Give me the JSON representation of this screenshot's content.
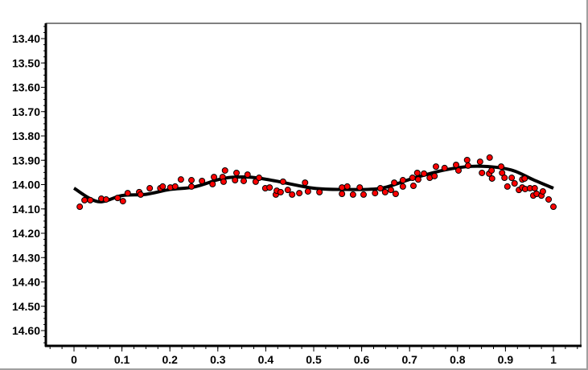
{
  "chart_data": {
    "type": "scatter",
    "title": "",
    "xlabel": "",
    "ylabel": "",
    "xlim": [
      -0.06,
      1.06
    ],
    "ylim": [
      14.665,
      13.335
    ],
    "y_inverted": true,
    "grid": false,
    "x_ticks": [
      "0",
      "0.1",
      "0.2",
      "0.3",
      "0.4",
      "0.5",
      "0.6",
      "0.7",
      "0.8",
      "0.9",
      "1"
    ],
    "x_tick_values": [
      0,
      0.1,
      0.2,
      0.3,
      0.4,
      0.5,
      0.6,
      0.7,
      0.8,
      0.9,
      1
    ],
    "y_ticks": [
      "13.40",
      "13.50",
      "13.60",
      "13.70",
      "13.80",
      "13.90",
      "14.00",
      "14.10",
      "14.20",
      "14.30",
      "14.40",
      "14.50",
      "14.60"
    ],
    "y_tick_values": [
      13.4,
      13.5,
      13.6,
      13.7,
      13.8,
      13.9,
      14.0,
      14.1,
      14.2,
      14.3,
      14.4,
      14.5,
      14.6
    ],
    "colors": {
      "points": "#ff0000",
      "point_outline": "#000000",
      "fit_line": "#000000"
    },
    "points": {
      "x": [
        0.012,
        0.022,
        0.034,
        0.057,
        0.067,
        0.091,
        0.102,
        0.112,
        0.136,
        0.139,
        0.158,
        0.18,
        0.185,
        0.201,
        0.211,
        0.223,
        0.245,
        0.245,
        0.267,
        0.289,
        0.292,
        0.31,
        0.312,
        0.315,
        0.336,
        0.339,
        0.354,
        0.362,
        0.379,
        0.386,
        0.399,
        0.408,
        0.421,
        0.423,
        0.431,
        0.436,
        0.446,
        0.455,
        0.47,
        0.482,
        0.488,
        0.512,
        0.559,
        0.559,
        0.57,
        0.582,
        0.596,
        0.604,
        0.628,
        0.639,
        0.649,
        0.661,
        0.668,
        0.671,
        0.686,
        0.686,
        0.706,
        0.708,
        0.716,
        0.718,
        0.73,
        0.742,
        0.752,
        0.755,
        0.773,
        0.797,
        0.802,
        0.82,
        0.822,
        0.847,
        0.851,
        0.866,
        0.867,
        0.871,
        0.872,
        0.891,
        0.893,
        0.898,
        0.904,
        0.913,
        0.919,
        0.928,
        0.935,
        0.935,
        0.94,
        0.941,
        0.951,
        0.958,
        0.961,
        0.965,
        0.975,
        0.978,
        0.99,
        1.0
      ],
      "y": [
        14.091,
        14.064,
        14.064,
        14.058,
        14.061,
        14.055,
        14.068,
        14.035,
        14.031,
        14.041,
        14.015,
        14.015,
        14.008,
        14.012,
        14.008,
        13.979,
        13.982,
        14.008,
        13.985,
        13.998,
        13.969,
        13.969,
        13.988,
        13.942,
        13.982,
        13.952,
        13.985,
        13.959,
        13.988,
        13.972,
        14.015,
        14.012,
        14.041,
        14.025,
        14.031,
        13.988,
        14.022,
        14.041,
        14.035,
        13.992,
        14.028,
        14.031,
        14.012,
        14.038,
        14.008,
        14.041,
        14.012,
        14.041,
        14.035,
        14.015,
        14.031,
        14.022,
        13.992,
        14.038,
        13.982,
        14.008,
        13.972,
        14.005,
        13.952,
        13.979,
        13.955,
        13.972,
        13.965,
        13.926,
        13.932,
        13.919,
        13.942,
        13.899,
        13.922,
        13.906,
        13.952,
        13.955,
        13.889,
        13.942,
        13.975,
        13.926,
        13.952,
        13.972,
        14.008,
        13.972,
        13.995,
        14.022,
        13.979,
        14.012,
        13.975,
        14.018,
        14.015,
        14.045,
        14.015,
        14.038,
        14.045,
        14.028,
        14.061,
        14.091
      ]
    },
    "fit_line": {
      "x": [
        0,
        0.05,
        0.1,
        0.15,
        0.2,
        0.25,
        0.3,
        0.33,
        0.37,
        0.42,
        0.5,
        0.567,
        0.64,
        0.706,
        0.773,
        0.83,
        0.886,
        0.92,
        0.958,
        1.0
      ],
      "y": [
        14.015,
        14.07,
        14.045,
        14.04,
        14.02,
        14.01,
        13.98,
        13.97,
        13.97,
        13.985,
        14.015,
        14.02,
        14.015,
        13.975,
        13.94,
        13.925,
        13.93,
        13.945,
        13.98,
        14.015
      ]
    }
  }
}
